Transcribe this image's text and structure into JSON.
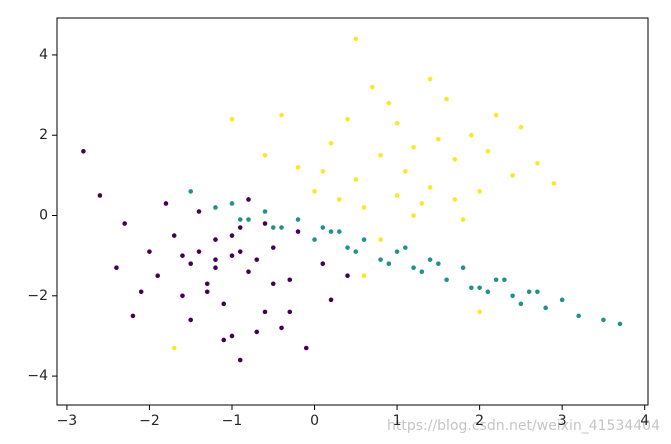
{
  "chart_data": {
    "type": "scatter",
    "xlim": [
      -3.12,
      4.04
    ],
    "ylim": [
      -4.72,
      4.92
    ],
    "xticks": [
      {
        "value": -3,
        "label": "−3"
      },
      {
        "value": -2,
        "label": "−2"
      },
      {
        "value": -1,
        "label": "−1"
      },
      0,
      1,
      2,
      3,
      4
    ],
    "yticks": [
      {
        "value": -4,
        "label": "−4"
      },
      {
        "value": -2,
        "label": "−2"
      },
      0,
      2,
      4
    ],
    "watermark": "https://blog.csdn.net/weixin_41534404",
    "series": [
      {
        "color": "#440154",
        "x": [
          -1.0,
          -1.2,
          -0.8,
          -1.5,
          -0.5,
          -1.3,
          -0.9,
          -1.7,
          -0.3,
          -1.1,
          -0.6,
          -2.0,
          -1.4,
          -0.7,
          -1.9,
          -0.2,
          -1.6,
          -0.4,
          -2.3,
          -1.0,
          -0.8,
          -1.2,
          -2.6,
          -2.8,
          0.2,
          -0.1,
          -1.5,
          -0.9,
          -1.8,
          -1.3,
          -0.6,
          0.1,
          -2.1,
          -1.1,
          -0.5,
          -1.4,
          -0.7,
          -2.4,
          -1.0,
          0.4,
          -1.6,
          -0.3,
          -1.2,
          -0.9,
          -2.2
        ],
        "y": [
          -1.0,
          -0.6,
          -1.4,
          -1.2,
          -0.8,
          -1.9,
          -0.3,
          -0.5,
          -1.6,
          -2.2,
          -2.4,
          -0.9,
          0.1,
          -1.1,
          -1.5,
          -0.4,
          -2.0,
          -2.8,
          -0.2,
          -3.0,
          0.4,
          -1.3,
          0.5,
          1.6,
          -2.1,
          -3.3,
          -2.6,
          -0.9,
          0.3,
          -1.7,
          -0.2,
          -1.2,
          -1.9,
          -3.1,
          -1.7,
          -0.9,
          -2.9,
          -1.3,
          -0.5,
          -1.5,
          -1.0,
          -2.4,
          -1.1,
          -3.6,
          -2.5
        ]
      },
      {
        "color": "#21918c",
        "x": [
          -1.5,
          -1.2,
          -1.0,
          -0.8,
          -0.6,
          -0.4,
          -0.2,
          0.0,
          0.2,
          0.4,
          0.6,
          0.8,
          1.0,
          1.2,
          1.4,
          1.6,
          1.8,
          2.0,
          2.2,
          2.4,
          2.6,
          2.8,
          3.0,
          3.2,
          3.5,
          3.7,
          -0.5,
          0.3,
          0.9,
          1.5,
          2.1,
          2.7,
          -0.9,
          0.1,
          1.1,
          1.9,
          2.5,
          0.5,
          1.3,
          2.3
        ],
        "y": [
          0.6,
          0.2,
          0.3,
          -0.1,
          0.1,
          -0.3,
          -0.1,
          -0.6,
          -0.4,
          -0.8,
          -0.6,
          -1.1,
          -0.9,
          -1.3,
          -1.1,
          -1.6,
          -1.3,
          -1.8,
          -1.6,
          -2.0,
          -1.9,
          -2.3,
          -2.1,
          -2.5,
          -2.6,
          -2.7,
          -0.3,
          -0.4,
          -1.2,
          -1.2,
          -1.9,
          -1.9,
          -0.1,
          -0.3,
          -0.8,
          -1.8,
          -2.2,
          -0.9,
          -1.4,
          -1.6
        ]
      },
      {
        "color": "#fde725",
        "x": [
          1.1,
          0.8,
          1.4,
          0.5,
          1.7,
          0.2,
          2.0,
          1.0,
          1.3,
          0.6,
          1.9,
          -0.2,
          2.4,
          0.9,
          1.5,
          0.0,
          2.2,
          1.2,
          0.4,
          1.8,
          -0.6,
          2.7,
          0.7,
          1.6,
          -0.4,
          2.9,
          1.0,
          0.3,
          2.1,
          1.4,
          0.5,
          -1.0,
          2.5,
          0.8,
          1.7,
          1.2,
          0.1,
          -1.7,
          0.6,
          2.0
        ],
        "y": [
          1.1,
          1.5,
          0.7,
          0.9,
          1.4,
          1.8,
          0.6,
          2.3,
          0.3,
          0.2,
          2.0,
          1.2,
          1.0,
          2.8,
          1.9,
          0.6,
          2.5,
          0.0,
          2.4,
          -0.1,
          1.5,
          1.3,
          3.2,
          2.9,
          2.5,
          0.8,
          0.5,
          0.4,
          1.6,
          3.4,
          4.4,
          2.4,
          2.2,
          -0.6,
          0.4,
          1.7,
          1.1,
          -3.3,
          -1.5,
          -2.4
        ]
      }
    ]
  }
}
